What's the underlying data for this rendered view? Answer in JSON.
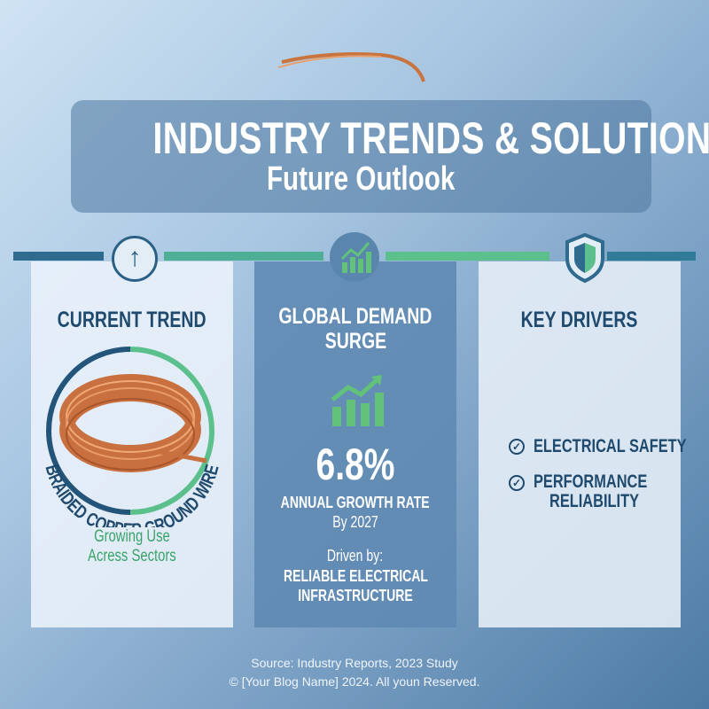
{
  "header": {
    "title": "INDUSTRY TRENDS & SOLUTIONS",
    "subtitle": "Future Outlook"
  },
  "colors": {
    "dark_blue": "#2a5f86",
    "green": "#5cc08c",
    "copper": "#d9824e"
  },
  "panels": [
    {
      "heading": "CURRENT TREND",
      "icon": "arrow-up-icon",
      "product": "BRAIDED COPPER GROUND WIRE",
      "tagline_line1": "Growing Use",
      "tagline_line2": "Acress Sectors"
    },
    {
      "heading_line1": "GLOBAL DEMAND",
      "heading_line2": "SURGE",
      "icon": "growth-chart-icon",
      "stat": "6.8%",
      "stat_label": "ANNUAL GROWTH RATE",
      "stat_year": "By 2027",
      "driven_by": "Driven by:",
      "driver_line1": "RELIABLE ELECTRICAL",
      "driver_line2": "INFRASTRUCTURE"
    },
    {
      "heading": "KEY DRIVERS",
      "icon": "shield-icon",
      "drivers": [
        {
          "line1": "ELECTRICAL SAFETY"
        },
        {
          "line1": "PERFORMANCE",
          "line2": "RELIABILITY"
        }
      ]
    }
  ],
  "footer": {
    "source": "Source: Industry Reports, 2023 Study",
    "copyright": "© [Your Blog Name] 2024. All youn Reserved."
  }
}
